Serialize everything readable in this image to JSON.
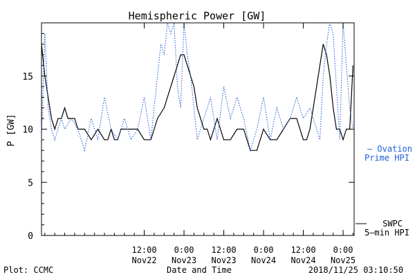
{
  "chart_data": {
    "type": "line",
    "title": "Hemispheric Power [GW]",
    "xlabel": "Date and Time",
    "ylabel": "P [GW]",
    "ylim": [
      0,
      20
    ],
    "yticks": [
      0,
      5,
      10,
      15
    ],
    "x_range": [
      "2018-11-21T05:00",
      "2018-11-25T03:20"
    ],
    "xticks": [
      {
        "t": "2018-11-22T12:00",
        "time": "12:00",
        "date": "Nov22"
      },
      {
        "t": "2018-11-23T00:00",
        "time": "0:00",
        "date": "Nov23"
      },
      {
        "t": "2018-11-23T12:00",
        "time": "12:00",
        "date": "Nov23"
      },
      {
        "t": "2018-11-24T00:00",
        "time": "0:00",
        "date": "Nov24"
      },
      {
        "t": "2018-11-24T12:00",
        "time": "12:00",
        "date": "Nov24"
      },
      {
        "t": "2018-11-25T00:00",
        "time": "0:00",
        "date": "Nov25"
      }
    ],
    "grid": false,
    "series": [
      {
        "name": "SWPC 5-min HPI",
        "style": "solid",
        "color": "#000000",
        "x": [
          "2018-11-21T05:00",
          "2018-11-21T06:00",
          "2018-11-21T07:00",
          "2018-11-21T08:00",
          "2018-11-21T09:00",
          "2018-11-21T10:00",
          "2018-11-21T11:00",
          "2018-11-21T12:00",
          "2018-11-21T13:00",
          "2018-11-21T14:00",
          "2018-11-21T15:00",
          "2018-11-21T16:00",
          "2018-11-21T18:00",
          "2018-11-21T20:00",
          "2018-11-21T22:00",
          "2018-11-22T00:00",
          "2018-11-22T01:00",
          "2018-11-22T02:00",
          "2018-11-22T03:00",
          "2018-11-22T04:00",
          "2018-11-22T05:00",
          "2018-11-22T06:00",
          "2018-11-22T08:00",
          "2018-11-22T10:00",
          "2018-11-22T12:00",
          "2018-11-22T14:00",
          "2018-11-22T15:00",
          "2018-11-22T16:00",
          "2018-11-22T18:00",
          "2018-11-22T19:00",
          "2018-11-22T20:00",
          "2018-11-22T21:00",
          "2018-11-22T22:00",
          "2018-11-22T23:00",
          "2018-11-23T00:00",
          "2018-11-23T01:00",
          "2018-11-23T02:00",
          "2018-11-23T03:00",
          "2018-11-23T04:00",
          "2018-11-23T05:00",
          "2018-11-23T06:00",
          "2018-11-23T07:00",
          "2018-11-23T08:00",
          "2018-11-23T09:00",
          "2018-11-23T10:00",
          "2018-11-23T11:00",
          "2018-11-23T12:00",
          "2018-11-23T14:00",
          "2018-11-23T16:00",
          "2018-11-23T18:00",
          "2018-11-23T20:00",
          "2018-11-23T22:00",
          "2018-11-24T00:00",
          "2018-11-24T02:00",
          "2018-11-24T04:00",
          "2018-11-24T06:00",
          "2018-11-24T08:00",
          "2018-11-24T10:00",
          "2018-11-24T12:00",
          "2018-11-24T13:00",
          "2018-11-24T14:00",
          "2018-11-24T15:00",
          "2018-11-24T16:00",
          "2018-11-24T17:00",
          "2018-11-24T18:00",
          "2018-11-24T19:00",
          "2018-11-24T20:00",
          "2018-11-24T21:00",
          "2018-11-24T22:00",
          "2018-11-24T23:00",
          "2018-11-25T00:00",
          "2018-11-25T01:00",
          "2018-11-25T02:00",
          "2018-11-25T03:00"
        ],
        "y": [
          18,
          15,
          13,
          11,
          10,
          11,
          11,
          12,
          11,
          11,
          11,
          10,
          10,
          9,
          10,
          9,
          9,
          10,
          9,
          9,
          10,
          10,
          10,
          10,
          9,
          9,
          10,
          11,
          12,
          13,
          14,
          15,
          16,
          17,
          17,
          16,
          15,
          14,
          12,
          11,
          10,
          10,
          9,
          10,
          11,
          10,
          9,
          9,
          10,
          10,
          8,
          8,
          10,
          9,
          9,
          10,
          11,
          11,
          9,
          9,
          10,
          12,
          14,
          16,
          18,
          17,
          15,
          12,
          10,
          10,
          9,
          10,
          10,
          16
        ]
      },
      {
        "name": "Ovation Prime HPI",
        "style": "dotted",
        "color": "#1f5fd6",
        "x": [
          "2018-11-21T05:00",
          "2018-11-21T06:00",
          "2018-11-21T07:00",
          "2018-11-21T08:00",
          "2018-11-21T09:00",
          "2018-11-21T10:00",
          "2018-11-21T11:00",
          "2018-11-21T12:00",
          "2018-11-21T14:00",
          "2018-11-21T16:00",
          "2018-11-21T18:00",
          "2018-11-21T20:00",
          "2018-11-21T22:00",
          "2018-11-22T00:00",
          "2018-11-22T02:00",
          "2018-11-22T04:00",
          "2018-11-22T06:00",
          "2018-11-22T08:00",
          "2018-11-22T10:00",
          "2018-11-22T12:00",
          "2018-11-22T14:00",
          "2018-11-22T15:00",
          "2018-11-22T16:00",
          "2018-11-22T17:00",
          "2018-11-22T18:00",
          "2018-11-22T19:00",
          "2018-11-22T20:00",
          "2018-11-22T21:00",
          "2018-11-22T22:00",
          "2018-11-22T23:00",
          "2018-11-23T00:00",
          "2018-11-23T01:00",
          "2018-11-23T02:00",
          "2018-11-23T03:00",
          "2018-11-23T04:00",
          "2018-11-23T06:00",
          "2018-11-23T08:00",
          "2018-11-23T10:00",
          "2018-11-23T12:00",
          "2018-11-23T14:00",
          "2018-11-23T16:00",
          "2018-11-23T18:00",
          "2018-11-23T20:00",
          "2018-11-23T22:00",
          "2018-11-24T00:00",
          "2018-11-24T02:00",
          "2018-11-24T04:00",
          "2018-11-24T06:00",
          "2018-11-24T08:00",
          "2018-11-24T10:00",
          "2018-11-24T12:00",
          "2018-11-24T14:00",
          "2018-11-24T16:00",
          "2018-11-24T17:00",
          "2018-11-24T18:00",
          "2018-11-24T19:00",
          "2018-11-24T20:00",
          "2018-11-24T21:00",
          "2018-11-24T22:00",
          "2018-11-24T23:00",
          "2018-11-25T00:00",
          "2018-11-25T01:00",
          "2018-11-25T02:00",
          "2018-11-25T03:00"
        ],
        "y": [
          9,
          19,
          12,
          10,
          9,
          10,
          11,
          10,
          11,
          10,
          8,
          11,
          9,
          13,
          10,
          9,
          11,
          9,
          10,
          13,
          9,
          12,
          15,
          18,
          17,
          20,
          19,
          20,
          14,
          12,
          20,
          17,
          15,
          12,
          9,
          11,
          13,
          9,
          14,
          11,
          13,
          11,
          8,
          10,
          13,
          9,
          12,
          10,
          11,
          13,
          11,
          12,
          10,
          9,
          15,
          18,
          20,
          19,
          14,
          9,
          20,
          16,
          12,
          10
        ]
      }
    ],
    "legend": [
      {
        "series": "Ovation Prime HPI",
        "line1": "— Ovation",
        "line2": "Prime HPI",
        "placement": "right"
      },
      {
        "series": "SWPC 5-min HPI",
        "line1": "SWPC",
        "line2": "5—min HPI",
        "placement": "bottom-right"
      }
    ]
  },
  "footer": {
    "plot_credit": "Plot: CCMC",
    "timestamp": "2018/11/25 03:10:50"
  },
  "colors": {
    "swpc": "#000000",
    "ovation": "#1f5fd6"
  }
}
